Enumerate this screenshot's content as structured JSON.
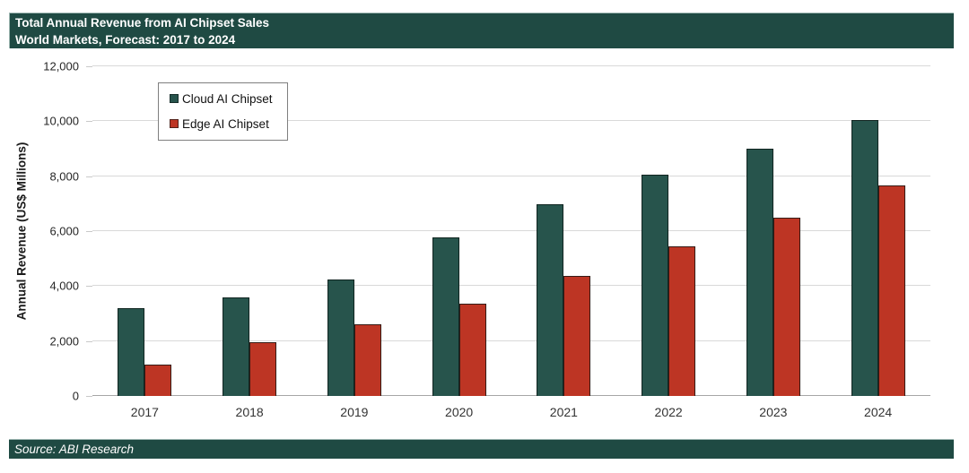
{
  "header": {
    "line1": "Total Annual Revenue from AI Chipset Sales",
    "line2": "World Markets, Forecast: 2017 to 2024"
  },
  "footer": {
    "source": "Source: ABI Research"
  },
  "chart_data": {
    "type": "bar",
    "title": "Total Annual Revenue from AI Chipset Sales",
    "subtitle": "World Markets, Forecast: 2017 to 2024",
    "categories": [
      "2017",
      "2018",
      "2019",
      "2020",
      "2021",
      "2022",
      "2023",
      "2024"
    ],
    "series": [
      {
        "name": "Cloud AI Chipset",
        "key": "cloud",
        "color": "#27544c",
        "values": [
          3200,
          3600,
          4250,
          5775,
          6975,
          8050,
          9000,
          10050
        ]
      },
      {
        "name": "Edge AI Chipset",
        "key": "edge",
        "color": "#bd3524",
        "values": [
          1150,
          1950,
          2625,
          3350,
          4375,
          5450,
          6500,
          7650
        ]
      }
    ],
    "xlabel": "",
    "ylabel": "Annual Revenue (US$ Millions)",
    "ylim": [
      0,
      12000
    ],
    "yticks": [
      0,
      2000,
      4000,
      6000,
      8000,
      10000,
      12000
    ],
    "ytick_labels": [
      "0",
      "2,000",
      "4,000",
      "6,000",
      "8,000",
      "10,000",
      "12,000"
    ],
    "grid": "horizontal",
    "legend_position": "top-left-inside",
    "units": "US$ Millions"
  }
}
